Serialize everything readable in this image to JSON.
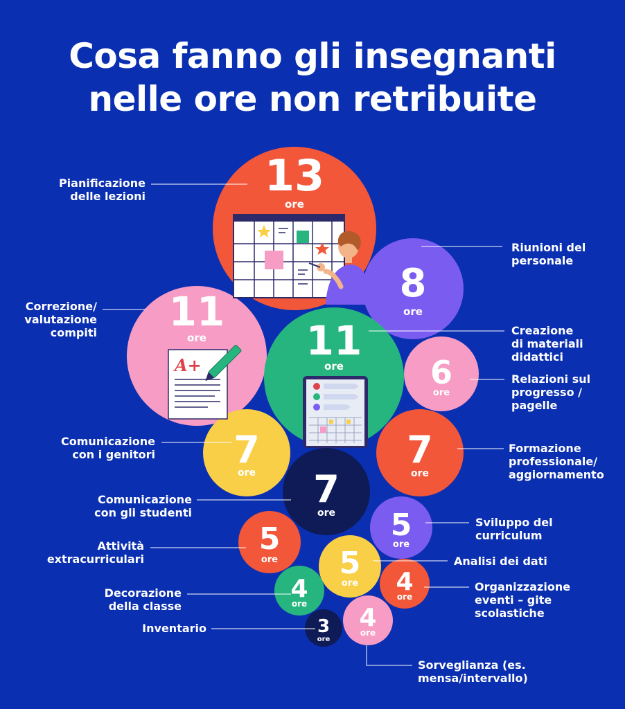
{
  "title": [
    "Cosa fanno gli insegnanti",
    "nelle ore non retribuite"
  ],
  "chart_data": {
    "type": "bubble",
    "unit": "ore",
    "categories": [
      {
        "label": [
          "Pianificazione",
          "delle lezioni"
        ],
        "value": 13,
        "color": "#f2573a",
        "illustration": "calendar-illustration"
      },
      {
        "label": [
          "Riunioni del",
          "personale"
        ],
        "value": 8,
        "color": "#7a5cf0"
      },
      {
        "label": [
          "Correzione/",
          "valutazione",
          "compiti"
        ],
        "value": 11,
        "color": "#f79cc4",
        "illustration": "graded-paper-illustration"
      },
      {
        "label": [
          "Creazione",
          "di materiali",
          "didattici"
        ],
        "value": 11,
        "color": "#27b57f",
        "illustration": "tablet-illustration"
      },
      {
        "label": [
          "Relazioni sul",
          "progresso /",
          "pagelle"
        ],
        "value": 6,
        "color": "#f79cc4"
      },
      {
        "label": [
          "Comunicazione",
          "con i genitori"
        ],
        "value": 7,
        "color": "#f9cf47"
      },
      {
        "label": [
          "Formazione",
          "professionale/",
          "aggiornamento"
        ],
        "value": 7,
        "color": "#f2573a"
      },
      {
        "label": [
          "Comunicazione",
          "con gli studenti"
        ],
        "value": 7,
        "color": "#0e1b57"
      },
      {
        "label": [
          "Sviluppo del",
          "curriculum"
        ],
        "value": 5,
        "color": "#7a5cf0"
      },
      {
        "label": [
          "Attività",
          "extracurriculari"
        ],
        "value": 5,
        "color": "#f2573a"
      },
      {
        "label": [
          "Analisi dei dati"
        ],
        "value": 5,
        "color": "#f9cf47"
      },
      {
        "label": [
          "Organizzazione",
          "eventi – gite",
          "scolastiche"
        ],
        "value": 4,
        "color": "#f2573a"
      },
      {
        "label": [
          "Decorazione",
          "della classe"
        ],
        "value": 4,
        "color": "#27b57f"
      },
      {
        "label": [
          "Inventario"
        ],
        "value": 3,
        "color": "#0e1b57"
      },
      {
        "label": [
          "Sorveglianza (es.",
          "mensa/intervallo)"
        ],
        "value": 4,
        "color": "#f79cc4"
      }
    ]
  }
}
